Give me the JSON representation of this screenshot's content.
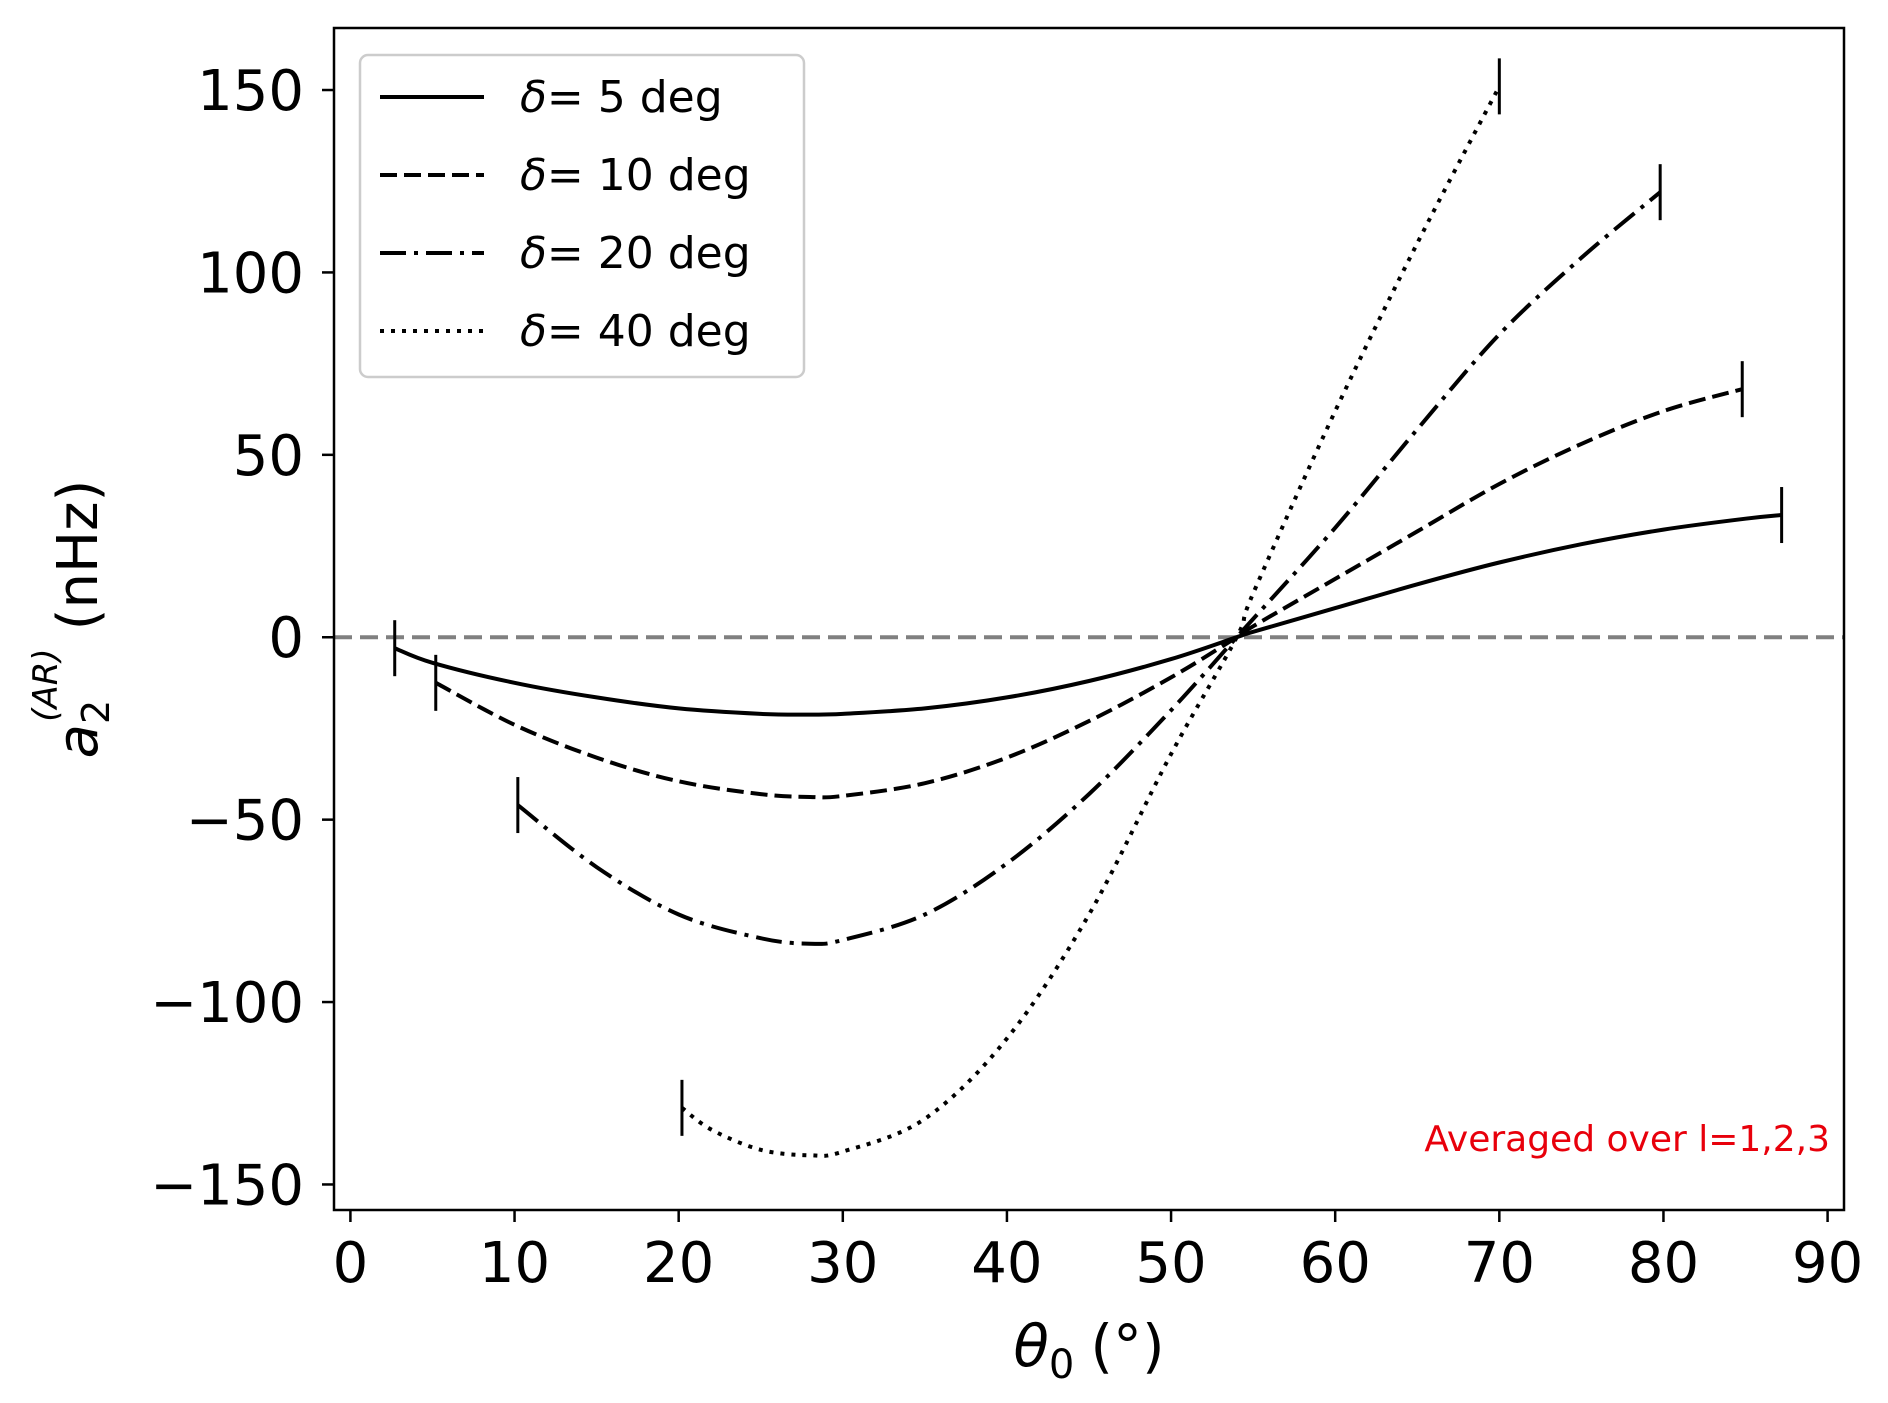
{
  "chart_data": {
    "type": "line",
    "xlabel": {
      "symbol": "θ",
      "subscript": "0",
      "unit": "(°)"
    },
    "ylabel": {
      "symbol": "a",
      "subscript": "2",
      "superscript": "(AR)",
      "unit": "(nHz)"
    },
    "xlim": [
      -1,
      91
    ],
    "ylim": [
      -157,
      167
    ],
    "xticks": [
      0,
      10,
      20,
      30,
      40,
      50,
      60,
      70,
      80,
      90
    ],
    "yticks": [
      -150,
      -100,
      -50,
      0,
      50,
      100,
      150
    ],
    "ytick_labels": [
      "−150",
      "−100",
      "−50",
      "0",
      "50",
      "100",
      "150"
    ],
    "grid": false,
    "legend_position": "top-left",
    "reference_line": {
      "y": 0,
      "style": "dashed",
      "color": "#808080"
    },
    "series": [
      {
        "name": "δ = 5 deg",
        "legend_symbol": "δ",
        "legend_value": "= 5 deg",
        "style": "solid",
        "x": [
          2.7,
          5,
          10,
          15,
          20,
          25,
          28,
          30,
          35,
          40,
          45,
          50,
          54,
          55,
          60,
          65,
          70,
          75,
          80,
          85,
          87.2
        ],
        "y": [
          -3,
          -7,
          -12.5,
          -16.5,
          -19.5,
          -21,
          -21.2,
          -21,
          -19.5,
          -16.5,
          -12,
          -6,
          0,
          1.5,
          8,
          14.5,
          20.5,
          25.5,
          29.5,
          32.5,
          33.5
        ]
      },
      {
        "name": "δ = 10 deg",
        "legend_symbol": "δ",
        "legend_value": "= 10 deg",
        "style": "dashed",
        "x": [
          5.2,
          10,
          15,
          20,
          25,
          28,
          30,
          35,
          40,
          45,
          50,
          54,
          55,
          60,
          65,
          70,
          75,
          80,
          84.8
        ],
        "y": [
          -12.5,
          -24,
          -33,
          -39.5,
          -43,
          -43.8,
          -43.5,
          -40,
          -33,
          -23,
          -11,
          0,
          3,
          16,
          29,
          42,
          53,
          62,
          68
        ]
      },
      {
        "name": "δ = 20 deg",
        "legend_symbol": "δ",
        "legend_value": "= 20 deg",
        "style": "dashdot",
        "x": [
          10.2,
          15,
          20,
          25,
          28,
          30,
          35,
          40,
          45,
          50,
          54,
          55,
          60,
          65,
          70,
          75,
          79.8
        ],
        "y": [
          -46,
          -63,
          -76,
          -82.5,
          -84,
          -83,
          -76,
          -62,
          -43,
          -20,
          0,
          5,
          30,
          57,
          83,
          104,
          122
        ]
      },
      {
        "name": "δ = 40 deg",
        "legend_symbol": "δ",
        "legend_value": "= 40 deg",
        "style": "dotted",
        "x": [
          20.2,
          22,
          25,
          28,
          30,
          35,
          40,
          45,
          50,
          54,
          55,
          60,
          65,
          70
        ],
        "y": [
          -129,
          -135,
          -140.5,
          -142,
          -141,
          -132,
          -110,
          -76,
          -32,
          0,
          12,
          62,
          108,
          151
        ]
      }
    ],
    "annotation": {
      "text": "Averaged over l=1,2,3",
      "color": "#e8000b",
      "position": "bottom-right"
    }
  }
}
